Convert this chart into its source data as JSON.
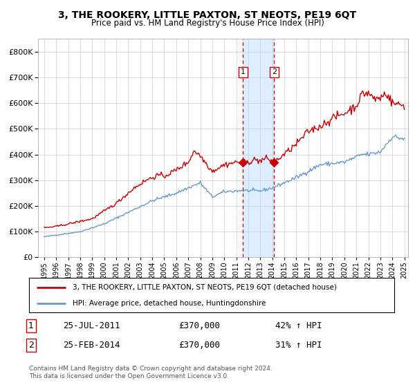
{
  "title": "3, THE ROOKERY, LITTLE PAXTON, ST NEOTS, PE19 6QT",
  "subtitle": "Price paid vs. HM Land Registry's House Price Index (HPI)",
  "legend_line1": "3, THE ROOKERY, LITTLE PAXTON, ST NEOTS, PE19 6QT (detached house)",
  "legend_line2": "HPI: Average price, detached house, Huntingdonshire",
  "transaction1_date": "25-JUL-2011",
  "transaction1_price": 370000,
  "transaction1_hpi": "42% ↑ HPI",
  "transaction2_date": "25-FEB-2014",
  "transaction2_price": 370000,
  "transaction2_hpi": "31% ↑ HPI",
  "footer": "Contains HM Land Registry data © Crown copyright and database right 2024.\nThis data is licensed under the Open Government Licence v3.0.",
  "red_line_color": "#cc0000",
  "blue_line_color": "#6699cc",
  "marker_color": "#cc0000",
  "vline_color": "#cc0000",
  "shade_color": "#ddeeff",
  "ylim": [
    0,
    850000
  ],
  "x_start_year": 1995,
  "x_end_year": 2025,
  "transaction1_x": 2011.56,
  "transaction2_x": 2014.15
}
